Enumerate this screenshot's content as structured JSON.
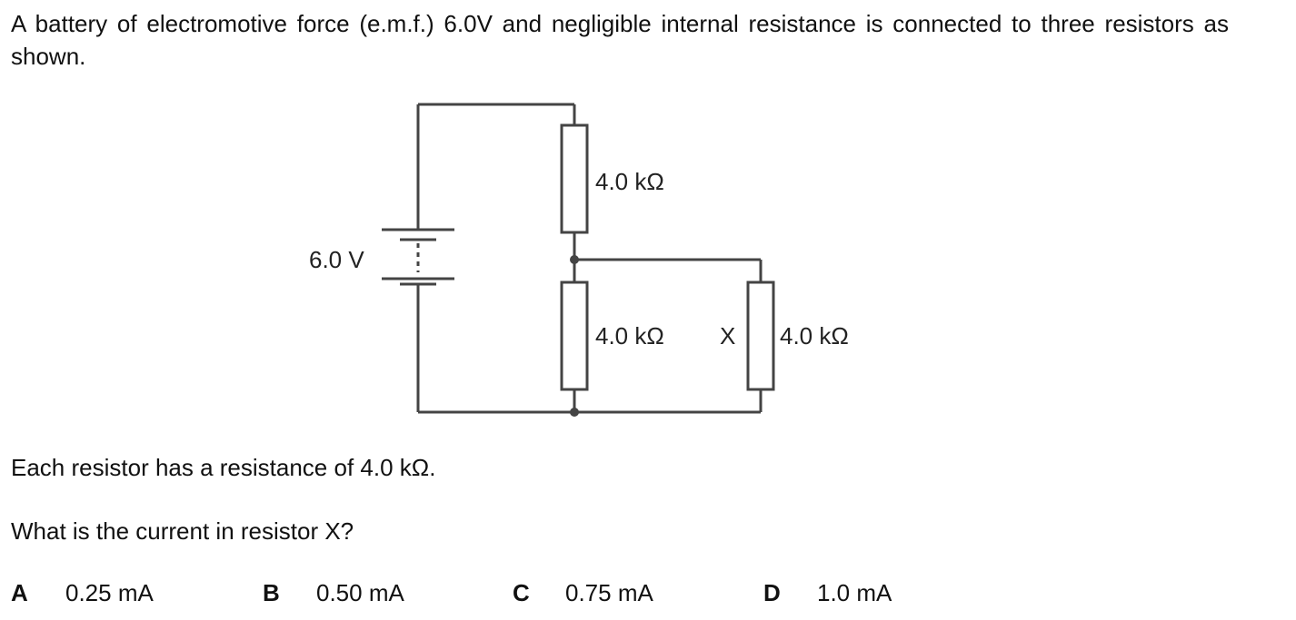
{
  "question": {
    "intro": "A battery of electromotive force (e.m.f.) 6.0V and negligible internal resistance is connected to three resistors as shown.",
    "statement": "Each resistor has a resistance of 4.0 kΩ.",
    "prompt": "What is the current in resistor X?"
  },
  "diagram": {
    "battery_label": "6.0 V",
    "resistor_top_label": "4.0 kΩ",
    "resistor_middle_label": "4.0 kΩ",
    "resistor_x_name": "X",
    "resistor_x_label": "4.0 kΩ"
  },
  "options": [
    {
      "letter": "A",
      "value": "0.25 mA"
    },
    {
      "letter": "B",
      "value": "0.50 mA"
    },
    {
      "letter": "C",
      "value": "0.75 mA"
    },
    {
      "letter": "D",
      "value": "1.0 mA"
    }
  ]
}
